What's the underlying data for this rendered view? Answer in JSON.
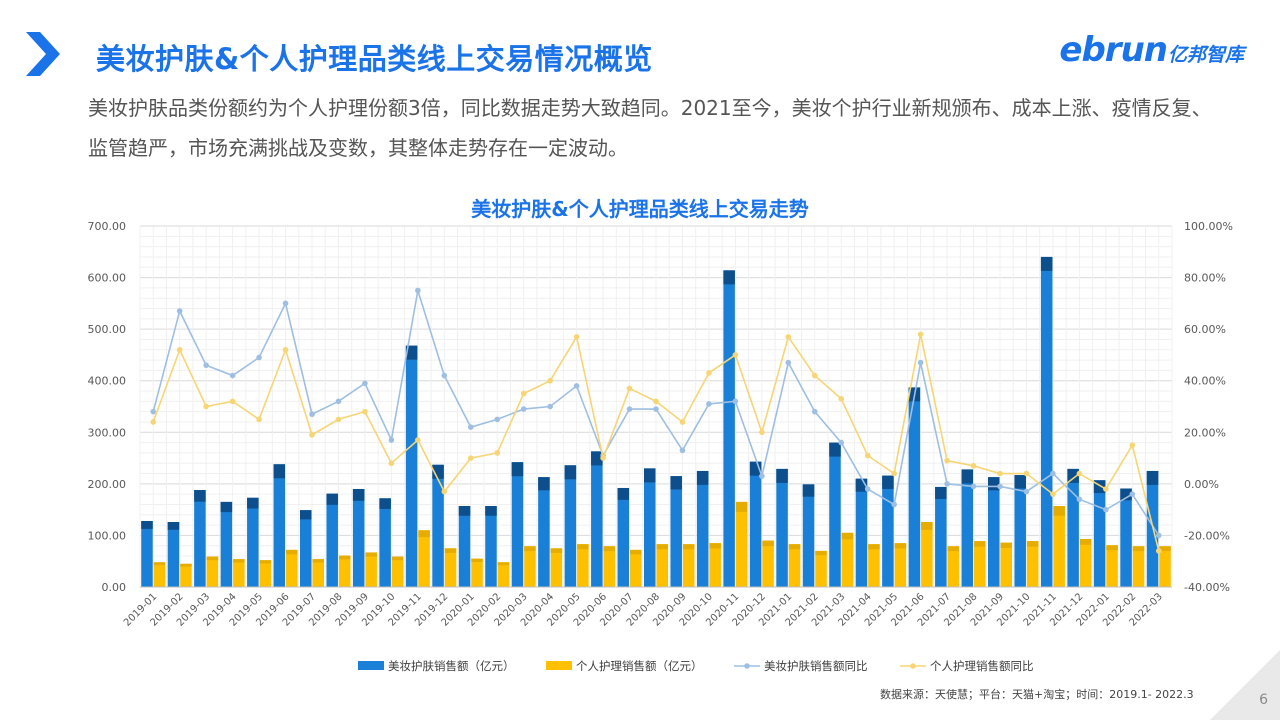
{
  "header": {
    "title": "美妆护肤&个人护理品类线上交易情况概览",
    "logo_en": "ebrun",
    "logo_cn": "亿邦智库"
  },
  "description": "美妆护肤品类份额约为个人护理份额3倍，同比数据走势大致趋同。2021至今，美妆个护行业新规颁布、成本上涨、疫情反复、监管趋严，市场充满挑战及变数，其整体走势存在一定波动。",
  "source": "数据来源：天使慧；平台：天猫+淘宝；时间：2019.1- 2022.3",
  "page_number": "6",
  "colors": {
    "accent": "#1a73e8",
    "beauty_bar": "#1a7fd6",
    "beauty_bar_top": "#0d4f8c",
    "care_bar": "#ffc000",
    "beauty_line": "#b6cfe8",
    "care_line": "#fbe3a0"
  },
  "chart_data": {
    "type": "bar",
    "title": "美妆护肤&个人护理品类线上交易走势",
    "categories": [
      "2019-01",
      "2019-02",
      "2019-03",
      "2019-04",
      "2019-05",
      "2019-06",
      "2019-07",
      "2019-08",
      "2019-09",
      "2019-10",
      "2019-11",
      "2019-12",
      "2020-01",
      "2020-02",
      "2020-03",
      "2020-04",
      "2020-05",
      "2020-06",
      "2020-07",
      "2020-08",
      "2020-09",
      "2020-10",
      "2020-11",
      "2020-12",
      "2021-01",
      "2021-02",
      "2021-03",
      "2021-04",
      "2021-05",
      "2021-06",
      "2021-07",
      "2021-08",
      "2021-09",
      "2021-10",
      "2021-11",
      "2021-12",
      "2022-01",
      "2022-02",
      "2022-03"
    ],
    "y_left": {
      "min": 0,
      "max": 700,
      "ticks": [
        "0.00",
        "100.00",
        "200.00",
        "300.00",
        "400.00",
        "500.00",
        "600.00",
        "700.00"
      ]
    },
    "y_right": {
      "min": -40,
      "max": 100,
      "ticks": [
        "-40.00%",
        "-20.00%",
        "0.00%",
        "20.00%",
        "40.00%",
        "60.00%",
        "80.00%",
        "100.00%"
      ]
    },
    "grid": true,
    "legend_position": "bottom",
    "series": [
      {
        "name": "美妆护肤销售额（亿元）",
        "type": "bar",
        "axis": "left",
        "values": [
          128,
          126,
          188,
          165,
          173,
          238,
          149,
          181,
          190,
          172,
          468,
          237,
          157,
          157,
          242,
          213,
          236,
          263,
          192,
          230,
          215,
          225,
          614,
          243,
          229,
          199,
          280,
          210,
          216,
          387,
          194,
          228,
          213,
          217,
          640,
          229,
          207,
          191,
          225
        ]
      },
      {
        "name": "个人护理销售额（亿元）",
        "type": "bar",
        "axis": "left",
        "values": [
          48,
          45,
          59,
          54,
          52,
          72,
          54,
          61,
          67,
          59,
          110,
          75,
          55,
          48,
          79,
          75,
          83,
          79,
          72,
          83,
          83,
          85,
          165,
          90,
          83,
          70,
          105,
          83,
          85,
          126,
          79,
          89,
          86,
          89,
          157,
          93,
          81,
          79,
          79
        ]
      },
      {
        "name": "美妆护肤销售额同比",
        "type": "line",
        "axis": "right",
        "values": [
          28,
          67,
          46,
          42,
          49,
          70,
          27,
          32,
          39,
          17,
          75,
          42,
          22,
          25,
          29,
          30,
          38,
          11,
          29,
          29,
          13,
          31,
          32,
          3,
          47,
          28,
          16,
          -2,
          -8,
          47,
          0,
          -1,
          -1,
          -3,
          4,
          -6,
          -10,
          -4,
          -20
        ]
      },
      {
        "name": "个人护理销售额同比",
        "type": "line",
        "axis": "right",
        "values": [
          24,
          52,
          30,
          32,
          25,
          52,
          19,
          25,
          28,
          8,
          17,
          -3,
          10,
          12,
          35,
          40,
          57,
          10,
          37,
          32,
          24,
          43,
          50,
          20,
          57,
          42,
          33,
          11,
          4,
          58,
          9,
          7,
          4,
          4,
          -4,
          4,
          -2,
          15,
          -26
        ]
      }
    ]
  }
}
